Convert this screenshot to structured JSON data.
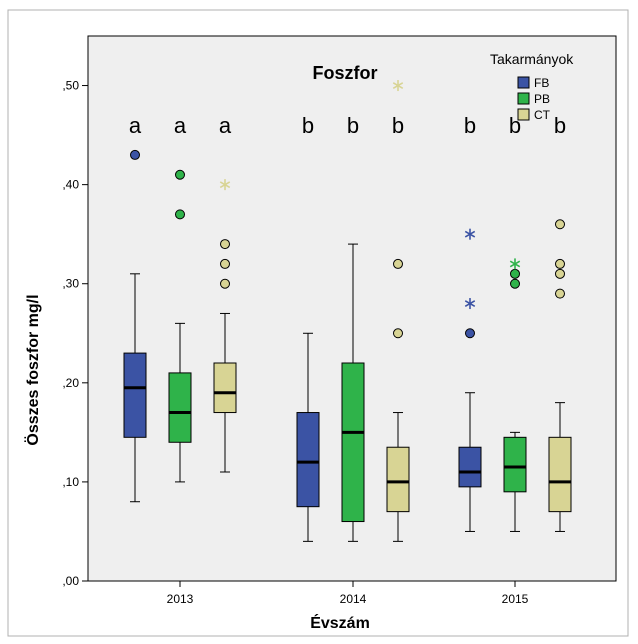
{
  "chart_data": {
    "type": "boxplot",
    "title": "Foszfor",
    "xlabel": "Évszám",
    "ylabel": "Összes foszfor mg/l",
    "ylim": [
      0,
      0.55
    ],
    "yticks": [
      0.0,
      0.1,
      0.2,
      0.3,
      0.4,
      0.5
    ],
    "ytick_labels": [
      ",00",
      ",10",
      ",20",
      ",30",
      ",40",
      ",50"
    ],
    "categories": [
      "2013",
      "2014",
      "2015"
    ],
    "legend": {
      "title": "Takarmányok",
      "position": "top-right"
    },
    "grid": false,
    "series": [
      {
        "name": "FB",
        "color": "#3b53a4",
        "boxes": [
          {
            "category": "2013",
            "min": 0.08,
            "q1": 0.145,
            "median": 0.195,
            "q3": 0.23,
            "max": 0.31,
            "outliers": [
              0.43
            ],
            "extremes": [],
            "letter": "a"
          },
          {
            "category": "2014",
            "min": 0.04,
            "q1": 0.075,
            "median": 0.12,
            "q3": 0.17,
            "max": 0.25,
            "outliers": [],
            "extremes": [],
            "letter": "b"
          },
          {
            "category": "2015",
            "min": 0.05,
            "q1": 0.095,
            "median": 0.11,
            "q3": 0.135,
            "max": 0.19,
            "outliers": [
              0.25
            ],
            "extremes": [
              0.28,
              0.35
            ],
            "letter": "b"
          }
        ]
      },
      {
        "name": "PB",
        "color": "#2fb34a",
        "boxes": [
          {
            "category": "2013",
            "min": 0.1,
            "q1": 0.14,
            "median": 0.17,
            "q3": 0.21,
            "max": 0.26,
            "outliers": [
              0.37,
              0.41
            ],
            "extremes": [],
            "letter": "a"
          },
          {
            "category": "2014",
            "min": 0.04,
            "q1": 0.06,
            "median": 0.15,
            "q3": 0.22,
            "max": 0.34,
            "outliers": [],
            "extremes": [],
            "letter": "b"
          },
          {
            "category": "2015",
            "min": 0.05,
            "q1": 0.09,
            "median": 0.115,
            "q3": 0.145,
            "max": 0.15,
            "outliers": [
              0.3,
              0.31
            ],
            "extremes": [
              0.32
            ],
            "letter": "b"
          }
        ]
      },
      {
        "name": "CT",
        "color": "#d8d494",
        "boxes": [
          {
            "category": "2013",
            "min": 0.11,
            "q1": 0.17,
            "median": 0.19,
            "q3": 0.22,
            "max": 0.27,
            "outliers": [
              0.3,
              0.32,
              0.34
            ],
            "extremes": [
              0.4
            ],
            "letter": "a"
          },
          {
            "category": "2014",
            "min": 0.04,
            "q1": 0.07,
            "median": 0.1,
            "q3": 0.135,
            "max": 0.17,
            "outliers": [
              0.25,
              0.32
            ],
            "extremes": [
              0.5
            ],
            "letter": "b"
          },
          {
            "category": "2015",
            "min": 0.05,
            "q1": 0.07,
            "median": 0.1,
            "q3": 0.145,
            "max": 0.18,
            "outliers": [
              0.29,
              0.31,
              0.32,
              0.36
            ],
            "extremes": [],
            "letter": "b"
          }
        ]
      }
    ]
  }
}
